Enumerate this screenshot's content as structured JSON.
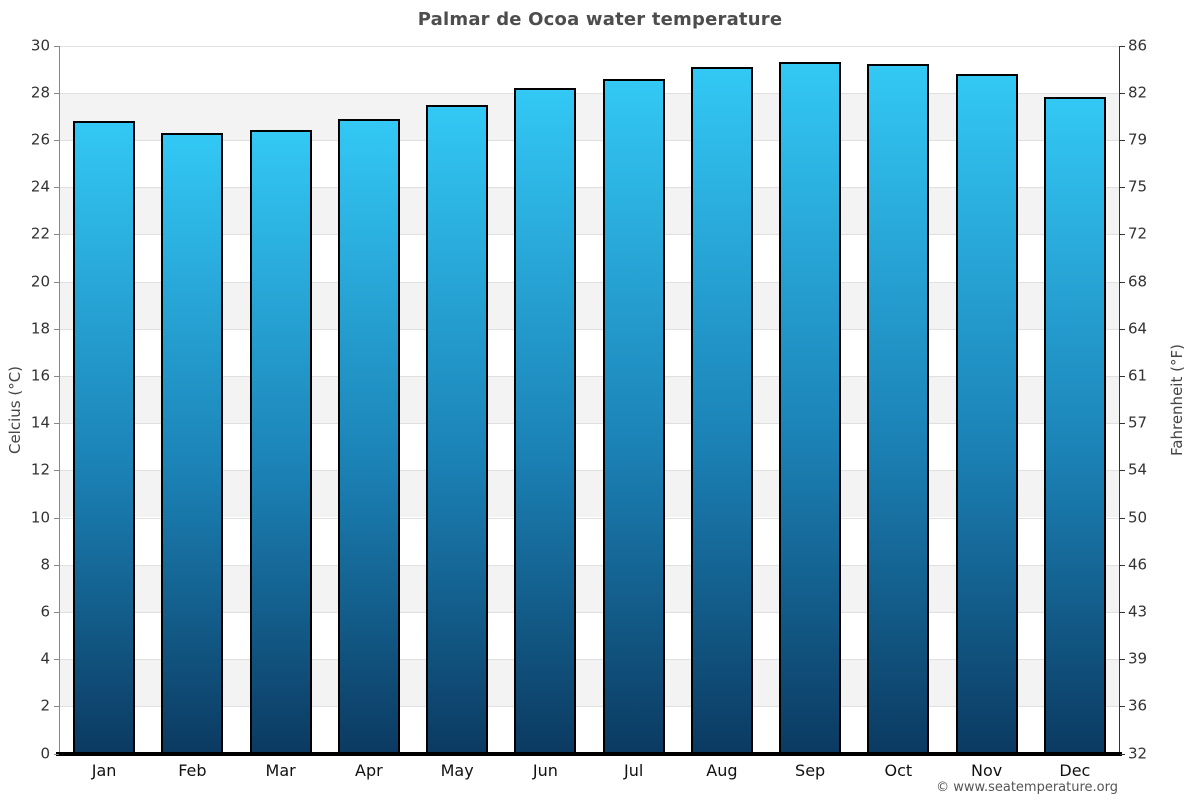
{
  "page": {
    "footer": "© www.seatemperature.org"
  },
  "chart_data": {
    "type": "bar",
    "title": "Palmar de Ocoa water temperature",
    "categories": [
      "Jan",
      "Feb",
      "Mar",
      "Apr",
      "May",
      "Jun",
      "Jul",
      "Aug",
      "Sep",
      "Oct",
      "Nov",
      "Dec"
    ],
    "values": [
      26.8,
      26.3,
      26.4,
      26.9,
      27.5,
      28.2,
      28.6,
      29.1,
      29.3,
      29.2,
      28.8,
      27.8
    ],
    "unit": "°C",
    "ylabel_left": "Celcius (°C)",
    "ylabel_right": "Fahrenheit (°F)",
    "xlabel": "",
    "ylim": [
      0,
      30
    ],
    "ytick_step": 2,
    "yticks_celsius_top_to_bottom": [
      30,
      28,
      26,
      24,
      22,
      20,
      18,
      16,
      14,
      12,
      10,
      8,
      6,
      4,
      2,
      0
    ],
    "yticks_fahrenheit_top_to_bottom": [
      86,
      82,
      79,
      75,
      72,
      68,
      64,
      61,
      57,
      54,
      50,
      46,
      43,
      39,
      36,
      32
    ],
    "legend": "none",
    "grid": "alternating horizontal bands every 2°C with light gridlines",
    "colors": {
      "bar_gradient_top": "#33c8f5",
      "bar_gradient_mid": "#1b81b5",
      "bar_gradient_bottom": "#0b3a61",
      "bar_border": "#000000",
      "band_gray": "#f3f3f3",
      "band_white": "#ffffff",
      "gridline": "#e0e0e0",
      "axis_left": "#888888",
      "axis_right": "#333333",
      "axis_bottom": "#000000",
      "title_color": "#4d4d4d",
      "tick_label_color": "#333333",
      "axis_title_color": "#444444",
      "footer_color": "#555555"
    }
  }
}
